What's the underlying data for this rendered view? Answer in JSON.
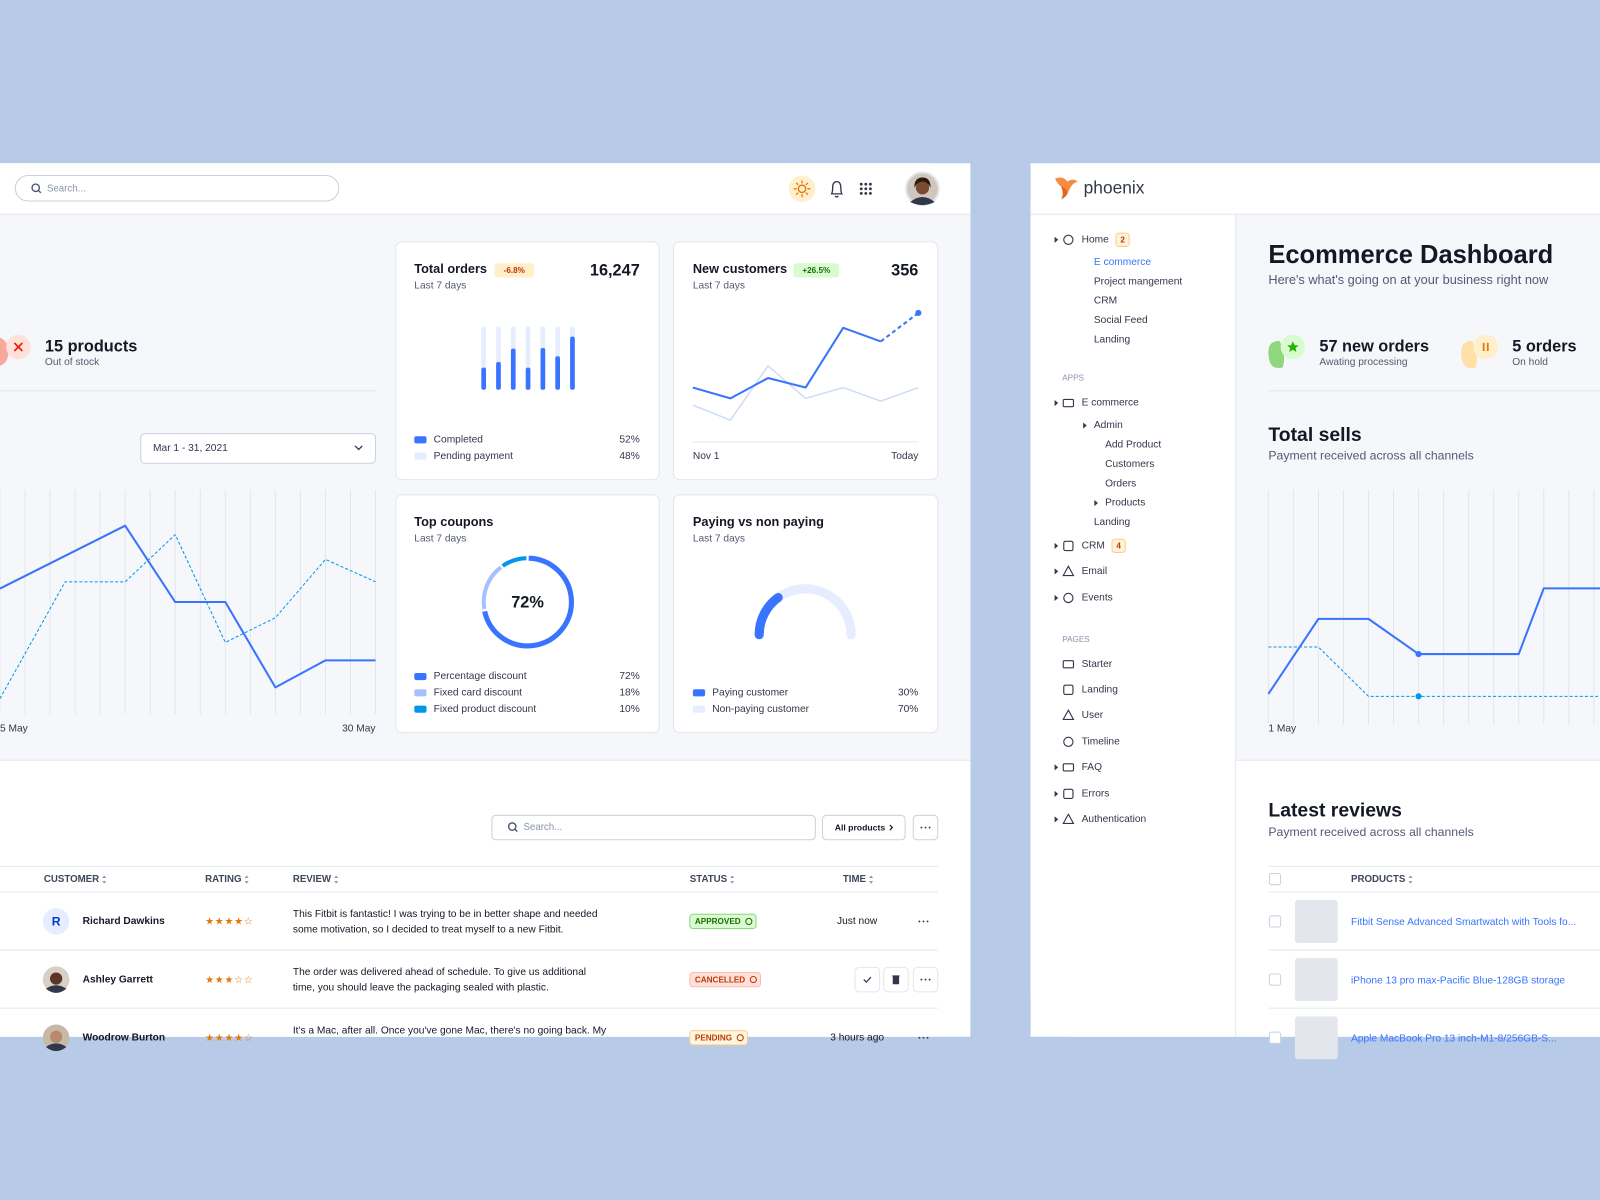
{
  "header": {
    "search_placeholder": "Search..."
  },
  "stock_alert": {
    "title": "15 products",
    "subtitle": "Out of stock"
  },
  "date_picker": "Mar 1 - 31, 2021",
  "sales_chart": {
    "xlim": [
      0,
      15
    ],
    "ylim": [
      0,
      100
    ],
    "x_labels": [
      "5 May",
      "30 May"
    ],
    "series": [
      {
        "color": "#3874ff",
        "dashed": false,
        "x": [
          0,
          5,
          7,
          9,
          11,
          13,
          15
        ],
        "values": [
          56,
          84,
          50,
          50,
          12,
          24,
          24
        ]
      },
      {
        "color": "#0097eb",
        "dashed": true,
        "x": [
          0,
          2.6,
          5,
          7,
          9,
          11,
          13,
          15
        ],
        "values": [
          7,
          59,
          59,
          80,
          32,
          43,
          69,
          59
        ]
      }
    ]
  },
  "total_orders": {
    "title": "Total orders",
    "badge": "-6.8%",
    "value": "16,247",
    "subtitle": "Last 7 days",
    "bars": {
      "ylim": [
        0,
        100
      ],
      "color": "#3874ff",
      "track_color": "#e5edff",
      "values": [
        35,
        44,
        65,
        35,
        66,
        53,
        84
      ]
    },
    "legend": [
      {
        "label": "Completed",
        "value_label": "52%",
        "color": "#3874ff"
      },
      {
        "label": "Pending payment",
        "value_label": "48%",
        "color": "#e5edff"
      }
    ]
  },
  "new_customers": {
    "title": "New customers",
    "badge": "+26.5%",
    "value": "356",
    "subtitle": "Last 7 days",
    "x_labels": [
      "Nov 1",
      "Today"
    ],
    "ylim": [
      0,
      100
    ],
    "dashed_last_segment": true,
    "series": [
      {
        "color": "#3874ff",
        "values": [
          40,
          32,
          47,
          40,
          84,
          74,
          95
        ]
      },
      {
        "color": "#cfdcf9",
        "values": [
          27,
          16,
          56,
          32,
          40,
          30,
          40
        ]
      }
    ]
  },
  "top_coupons": {
    "title": "Top coupons",
    "subtitle": "Last 7 days",
    "legend": [
      {
        "label": "Percentage discount",
        "value": 72,
        "value_label": "72%",
        "color": "#3874ff"
      },
      {
        "label": "Fixed card discount",
        "value": 18,
        "value_label": "18%",
        "color": "#a6c0ff"
      },
      {
        "label": "Fixed product discount",
        "value": 10,
        "value_label": "10%",
        "color": "#0097eb"
      }
    ]
  },
  "paying": {
    "title": "Paying vs non paying",
    "subtitle": "Last 7 days",
    "legend": [
      {
        "label": "Paying customer",
        "value": 30,
        "value_label": "30%",
        "color": "#3874ff"
      },
      {
        "label": "Non-paying customer",
        "value": 70,
        "value_label": "70%",
        "color": "#e5edff"
      }
    ]
  },
  "reviews_table": {
    "search_placeholder": "Search...",
    "filter": "All products",
    "columns": [
      "CUSTOMER",
      "RATING",
      "REVIEW",
      "STATUS",
      "TIME"
    ],
    "rows": [
      {
        "initial": "R",
        "name": "Richard Dawkins",
        "rating": 4,
        "review": [
          "This Fitbit is fantastic! I was trying to be in better shape and needed",
          "some motivation, so I decided to treat myself to a new Fitbit."
        ],
        "status": "APPROVED",
        "time": "Just now"
      },
      {
        "name": "Ashley Garrett",
        "rating": 3,
        "review": [
          "The order was delivered ahead of schedule. To give us additional",
          "time, you should leave the packaging sealed with plastic."
        ],
        "status": "CANCELLED"
      },
      {
        "name": "Woodrow Burton",
        "rating": 4,
        "review": [
          "It's a Mac, after all. Once you've gone Mac, there's no going back. My"
        ],
        "status": "PENDING",
        "time": "3 hours ago"
      }
    ]
  },
  "sidebar": {
    "logo": "phoenix",
    "home": {
      "label": "Home",
      "badge": "2",
      "children": [
        {
          "label": "E commerce",
          "active": true
        },
        {
          "label": "Project mangement"
        },
        {
          "label": "CRM"
        },
        {
          "label": "Social Feed"
        },
        {
          "label": "Landing"
        }
      ]
    },
    "sections": [
      {
        "heading": "APPS",
        "items": [
          {
            "label": "E commerce",
            "children": [
              {
                "label": "Admin",
                "children": [
                  {
                    "label": "Add Product"
                  },
                  {
                    "label": "Customers"
                  },
                  {
                    "label": "Orders"
                  },
                  {
                    "label": "Products",
                    "children": []
                  }
                ]
              },
              {
                "label": "Landing"
              }
            ]
          },
          {
            "label": "CRM",
            "badge": "4",
            "children": []
          },
          {
            "label": "Email",
            "children": []
          },
          {
            "label": "Events",
            "children": []
          }
        ]
      },
      {
        "heading": "PAGES",
        "items": [
          {
            "label": "Starter"
          },
          {
            "label": "Landing"
          },
          {
            "label": "User"
          },
          {
            "label": "Timeline"
          },
          {
            "label": "FAQ",
            "children": []
          },
          {
            "label": "Errors",
            "children": []
          },
          {
            "label": "Authentication",
            "children": []
          }
        ]
      }
    ]
  },
  "dashboard": {
    "title": "Ecommerce Dashboard",
    "subtitle": "Here's what's going on at your business right now",
    "stats": [
      {
        "title": "57 new orders",
        "subtitle": "Awating processing"
      },
      {
        "title": "5 orders",
        "subtitle": "On hold"
      }
    ],
    "total_sells": {
      "title": "Total sells",
      "subtitle": "Payment received across all channels",
      "x_labels": [
        "1 May"
      ],
      "xlim": [
        0,
        15
      ],
      "ylim": [
        0,
        100
      ],
      "series": [
        {
          "color": "#3874ff",
          "dashed": false,
          "x": [
            0,
            2,
            4,
            6,
            10,
            11,
            14
          ],
          "values": [
            13,
            45,
            45,
            30,
            30,
            58,
            58
          ]
        },
        {
          "color": "#0097eb",
          "dashed": true,
          "x": [
            0,
            2,
            4,
            6,
            14
          ],
          "values": [
            33,
            33,
            12,
            12,
            12
          ]
        }
      ]
    },
    "latest_reviews": {
      "title": "Latest reviews",
      "subtitle": "Payment received across all channels",
      "column": "PRODUCTS",
      "products": [
        "Fitbit Sense Advanced Smartwatch with Tools fo...",
        "iPhone 13 pro max-Pacific Blue-128GB storage",
        "Apple MacBook Pro 13 inch-M1-8/256GB-S..."
      ]
    }
  }
}
